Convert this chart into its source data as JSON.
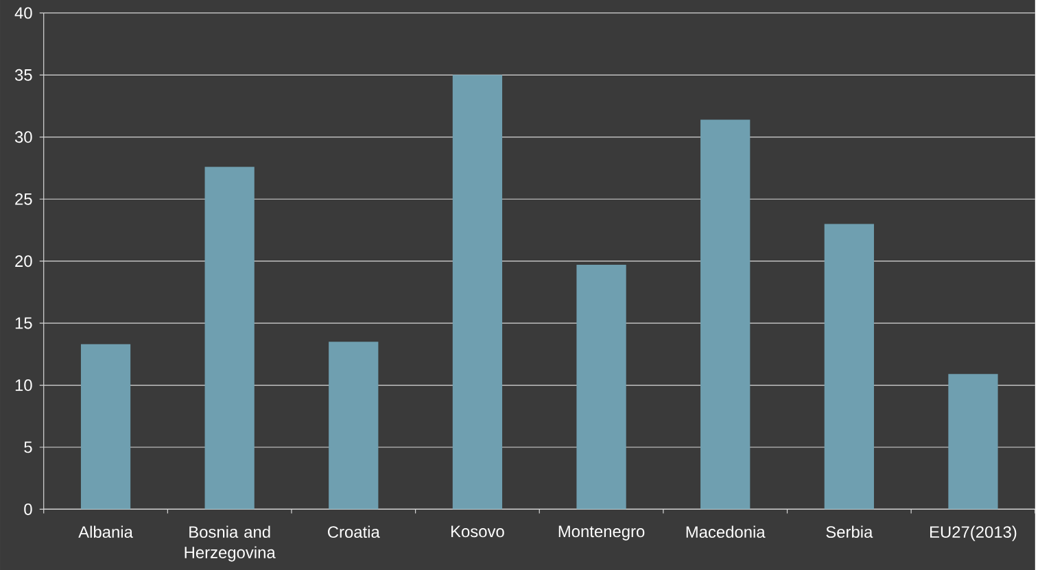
{
  "chart_data": {
    "type": "bar",
    "categories": [
      "Albania",
      "Bosnia and Herzegovina",
      "Croatia",
      "Kosovo",
      "Montenegro",
      "Macedonia",
      "Serbia",
      "EU27(2013)"
    ],
    "values": [
      13.3,
      27.6,
      13.5,
      35.0,
      19.7,
      31.4,
      23.0,
      10.9
    ],
    "color": "#6f9fb0",
    "ylim": [
      0,
      40
    ],
    "yticks": [
      0,
      5,
      10,
      15,
      20,
      25,
      30,
      35,
      40
    ],
    "grid": "y"
  }
}
